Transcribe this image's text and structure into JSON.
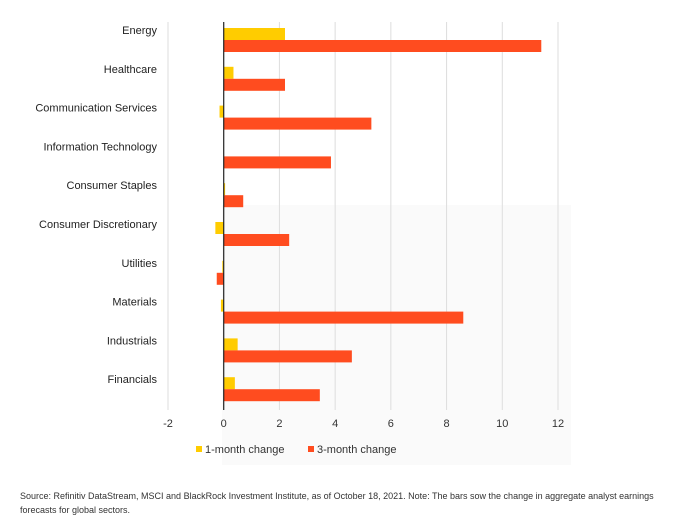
{
  "chart_data": {
    "type": "bar",
    "orientation": "horizontal",
    "title": "",
    "xlabel": "",
    "ylabel": "",
    "categories": [
      "Energy",
      "Healthcare",
      "Communication Services",
      "Information Technology",
      "Consumer Staples",
      "Consumer Discretionary",
      "Utilities",
      "Materials",
      "Industrials",
      "Financials"
    ],
    "series": [
      {
        "name": "1-month change",
        "color": "#ffcc00",
        "values": [
          2.2,
          0.35,
          -0.15,
          0.0,
          0.05,
          -0.3,
          -0.05,
          -0.1,
          0.5,
          0.4
        ]
      },
      {
        "name": "3-month change",
        "color": "#ff4c1f",
        "values": [
          11.4,
          2.2,
          5.3,
          3.85,
          0.7,
          2.35,
          -0.25,
          8.6,
          4.6,
          3.45
        ]
      }
    ],
    "xlim": [
      -2,
      12
    ],
    "xticks": [
      -2,
      0,
      2,
      4,
      6,
      8,
      10,
      12
    ],
    "grid": "vertical",
    "legend": "bottom-center"
  },
  "source_note": "Source: Refinitiv DataStream, MSCI and BlackRock Investment Institute, as of October 18, 2021. Note: The bars sow the change in aggregate analyst earnings forecasts for global sectors."
}
